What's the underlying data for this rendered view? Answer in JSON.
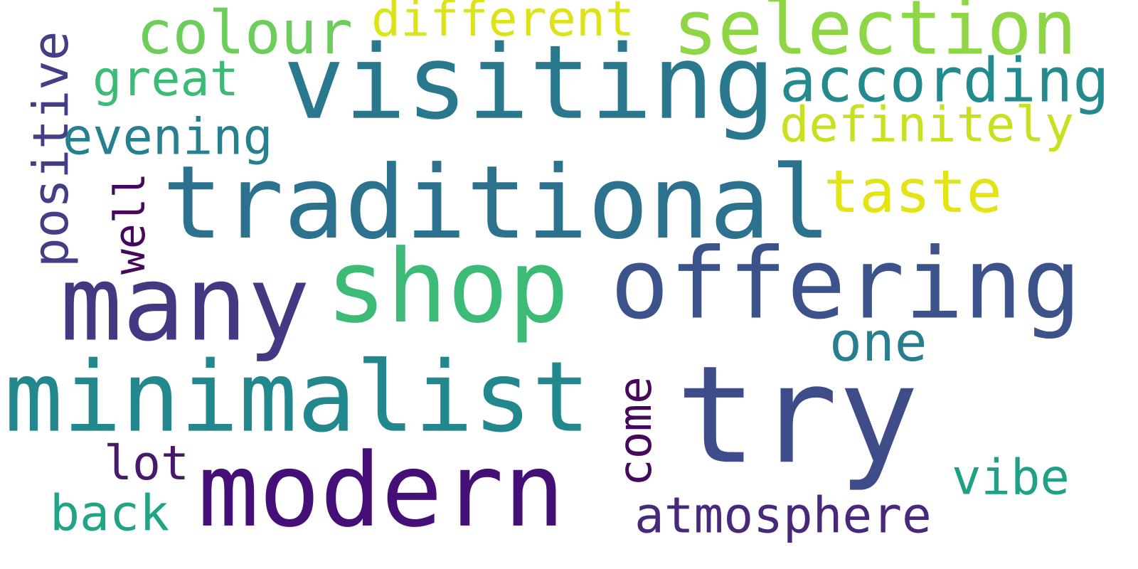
{
  "word_cloud": {
    "words": [
      {
        "text": "visiting",
        "color": "#2a788e",
        "orientation": "horizontal"
      },
      {
        "text": "traditional",
        "color": "#2c728e",
        "orientation": "horizontal"
      },
      {
        "text": "many",
        "color": "#453781",
        "orientation": "horizontal"
      },
      {
        "text": "shop",
        "color": "#3bbb75",
        "orientation": "horizontal"
      },
      {
        "text": "offering",
        "color": "#3b528b",
        "orientation": "horizontal"
      },
      {
        "text": "minimalist",
        "color": "#23888e",
        "orientation": "horizontal"
      },
      {
        "text": "try",
        "color": "#3e4c8a",
        "orientation": "horizontal"
      },
      {
        "text": "modern",
        "color": "#440f76",
        "orientation": "horizontal"
      },
      {
        "text": "selection",
        "color": "#8ed645",
        "orientation": "horizontal"
      },
      {
        "text": "colour",
        "color": "#6ccd5a",
        "orientation": "horizontal"
      },
      {
        "text": "different",
        "color": "#dde318",
        "orientation": "horizontal"
      },
      {
        "text": "according",
        "color": "#238a8d",
        "orientation": "horizontal"
      },
      {
        "text": "definitely",
        "color": "#c8e020",
        "orientation": "horizontal"
      },
      {
        "text": "great",
        "color": "#3bbb75",
        "orientation": "horizontal"
      },
      {
        "text": "evening",
        "color": "#27808e",
        "orientation": "horizontal"
      },
      {
        "text": "positive",
        "color": "#433e85",
        "orientation": "vertical"
      },
      {
        "text": "well",
        "color": "#46085c",
        "orientation": "vertical"
      },
      {
        "text": "taste",
        "color": "#e2e418",
        "orientation": "horizontal"
      },
      {
        "text": "one",
        "color": "#287d8e",
        "orientation": "horizontal"
      },
      {
        "text": "come",
        "color": "#46085c",
        "orientation": "vertical"
      },
      {
        "text": "lot",
        "color": "#48186a",
        "orientation": "horizontal"
      },
      {
        "text": "back",
        "color": "#20a386",
        "orientation": "horizontal"
      },
      {
        "text": "atmosphere",
        "color": "#482878",
        "orientation": "horizontal"
      },
      {
        "text": "vibe",
        "color": "#1fa187",
        "orientation": "horizontal"
      }
    ]
  }
}
